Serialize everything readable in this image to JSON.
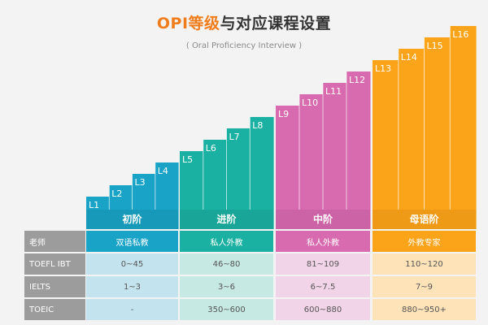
{
  "title": {
    "highlight": "OPI等级",
    "rest": "与对应课程设置"
  },
  "subtitle": "( Oral Proficiency Interview )",
  "colors": {
    "blue": "#19a3c6",
    "green": "#1bb1a2",
    "pink": "#d86aaf",
    "orange": "#fca419"
  },
  "groups": [
    {
      "name": "初阶",
      "color": "blue",
      "levels": [
        "L1",
        "L2",
        "L3",
        "L4"
      ]
    },
    {
      "name": "进阶",
      "color": "green",
      "levels": [
        "L5",
        "L6",
        "L7",
        "L8"
      ]
    },
    {
      "name": "中阶",
      "color": "pink",
      "levels": [
        "L9",
        "L10",
        "L11",
        "L12"
      ]
    },
    {
      "name": "母语阶",
      "color": "orange",
      "levels": [
        "L13",
        "L14",
        "L15",
        "L16"
      ]
    }
  ],
  "table": {
    "rows": [
      {
        "label": "老师",
        "values": [
          "双语私教",
          "私人外教",
          "私人外教",
          "外教专家"
        ]
      },
      {
        "label": "TOEFL IBT",
        "values": [
          "0~45",
          "46~80",
          "81~109",
          "110~120"
        ]
      },
      {
        "label": "IELTS",
        "values": [
          "1~3",
          "3~6",
          "6~7.5",
          "7~9"
        ]
      },
      {
        "label": "TOEIC",
        "values": [
          "-",
          "350~600",
          "600~880",
          "880~950+"
        ]
      }
    ]
  }
}
